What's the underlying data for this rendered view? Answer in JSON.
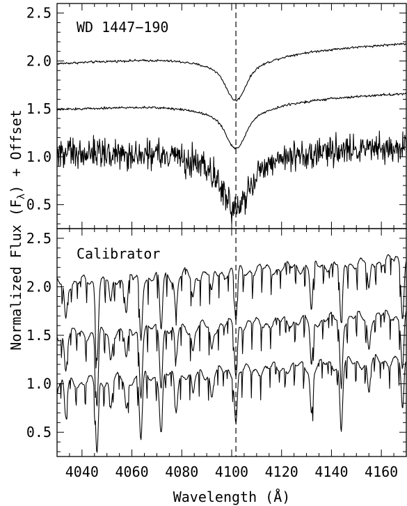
{
  "chart_data": [
    {
      "type": "line",
      "annotation": "WD 1447−190",
      "xlim": [
        4030,
        4170
      ],
      "ylim": [
        0.25,
        2.6
      ],
      "yticks": [
        "0.5",
        "1.0",
        "1.5",
        "2.0",
        "2.5"
      ],
      "reference_line": {
        "x": 4101.7,
        "style": "dashed"
      },
      "series": [
        {
          "kind": "smooth",
          "continuum": 1.98,
          "slope_per_A": 0.0015,
          "depth": 0.5,
          "core_width": 3.5,
          "wing_width": 14,
          "noise": 0.012,
          "x": [
            4030,
            4060,
            4090,
            4101.7,
            4115,
            4140,
            4170
          ],
          "y": [
            1.98,
            2.03,
            1.88,
            1.48,
            1.9,
            2.13,
            2.19
          ]
        },
        {
          "kind": "smooth",
          "continuum": 1.5,
          "slope_per_A": 0.0012,
          "depth": 0.5,
          "core_width": 3.5,
          "wing_width": 14,
          "noise": 0.012,
          "x": [
            4030,
            4060,
            4090,
            4101.7,
            4115,
            4140,
            4170
          ],
          "y": [
            1.5,
            1.53,
            1.4,
            1.0,
            1.38,
            1.6,
            1.66
          ]
        },
        {
          "kind": "noisy",
          "continuum": 1.05,
          "slope_per_A": 0.0003,
          "depth": 0.6,
          "core_width": 5,
          "wing_width": 15,
          "noise": 0.12,
          "x": [
            4030,
            4060,
            4090,
            4101.7,
            4115,
            4140,
            4170
          ],
          "y": [
            1.05,
            1.05,
            0.85,
            0.45,
            0.88,
            1.08,
            1.1
          ]
        }
      ]
    },
    {
      "type": "line",
      "annotation": "Calibrator",
      "xlim": [
        4030,
        4170
      ],
      "ylim": [
        0.25,
        2.6
      ],
      "yticks": [
        "0.5",
        "1.0",
        "1.5",
        "2.0",
        "2.5"
      ],
      "xticks": [
        "4040",
        "4060",
        "4080",
        "4100",
        "4120",
        "4140",
        "4160"
      ],
      "xlabel": "Wavelength (Å)",
      "reference_line": {
        "x": 4101.7,
        "style": "dashed"
      },
      "absorption_lines": [
        {
          "x": 4033.5,
          "depth": 0.45
        },
        {
          "x": 4046.0,
          "depth": 0.95
        },
        {
          "x": 4051.5,
          "depth": 0.35
        },
        {
          "x": 4057.8,
          "depth": 0.4
        },
        {
          "x": 4063.6,
          "depth": 0.8
        },
        {
          "x": 4071.7,
          "depth": 0.7
        },
        {
          "x": 4077.7,
          "depth": 0.45
        },
        {
          "x": 4084.5,
          "depth": 0.3
        },
        {
          "x": 4092.0,
          "depth": 0.3
        },
        {
          "x": 4101.7,
          "depth": 0.65
        },
        {
          "x": 4132.0,
          "depth": 0.6
        },
        {
          "x": 4143.9,
          "depth": 0.85
        },
        {
          "x": 4155.0,
          "depth": 0.4
        },
        {
          "x": 4168.5,
          "depth": 0.7
        }
      ],
      "series": [
        {
          "continuum": 2.03,
          "slope_per_A": 0.0018
        },
        {
          "continuum": 1.5,
          "slope_per_A": 0.0015
        },
        {
          "continuum": 1.0,
          "slope_per_A": 0.0018
        }
      ]
    }
  ],
  "ylabel_parts": {
    "before": "Normalized Flux (F",
    "subscript": "λ",
    "after": ") + Offset"
  }
}
